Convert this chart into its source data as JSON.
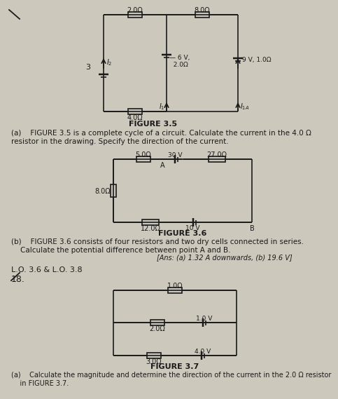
{
  "bg_color": "#cdc8bc",
  "line_color": "#1a1a1a",
  "text_color": "#1a1a1a",
  "fig35": {
    "title": "FIGURE 3.5",
    "caption_a": "(a)    FIGURE 3.5 is a complete cycle of a circuit. Calculate the current in the 4.0 Ω\nresistor in the drawing. Specify the direction of the current."
  },
  "fig36": {
    "title": "FIGURE 3.6",
    "caption_b": "(b)    FIGURE 3.6 consists of four resistors and two dry cells connected in series.\n    Calculate the potential difference between point A and B.",
    "ans": "[Ans: (a) 1.32 A downwards, (b) 19.6 V]"
  },
  "fig37": {
    "title": "FIGURE 3.7",
    "lo": "L.O. 3.6 & L.O. 3.8",
    "number": "18.",
    "caption_a": "(a)    Calculate the magnitude and determine the direction of the current in the 2.0 Ω resistor\n    in FIGURE 3.7."
  }
}
